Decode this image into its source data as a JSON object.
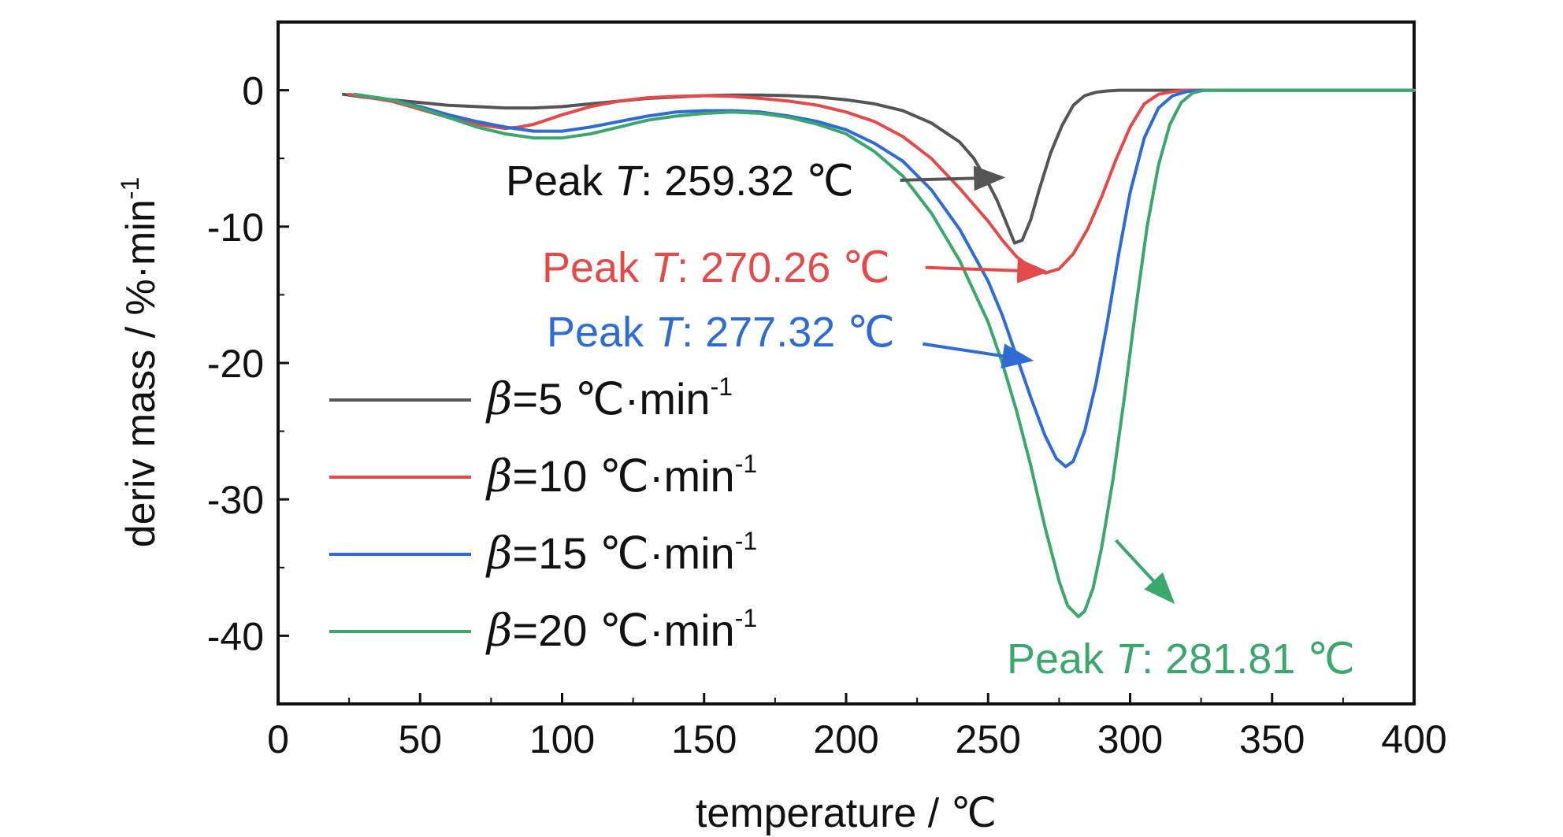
{
  "chart_data": {
    "type": "line",
    "xlabel": "temperature / ℃",
    "ylabel": "deriv mass / %·min",
    "ylabel_sup": "-1",
    "xlim": [
      0,
      400
    ],
    "ylim": [
      -45,
      5
    ],
    "x_ticks": [
      0,
      50,
      100,
      150,
      200,
      250,
      300,
      350,
      400
    ],
    "y_ticks": [
      0,
      -10,
      -20,
      -30,
      -40
    ],
    "legend_placement": "lower-left",
    "series": [
      {
        "name": "β=5 ℃·min-1",
        "legend_symbol": "β",
        "legend_value": "=5  ℃·min",
        "legend_sup": "-1",
        "color": "#555555",
        "x": [
          23,
          30,
          40,
          50,
          60,
          70,
          80,
          90,
          100,
          110,
          120,
          130,
          140,
          150,
          160,
          170,
          180,
          190,
          200,
          210,
          220,
          230,
          240,
          245,
          250,
          253,
          256,
          259.32,
          262,
          265,
          268,
          272,
          276,
          280,
          284,
          288,
          292,
          296,
          300,
          320,
          340,
          360,
          380,
          400
        ],
        "y": [
          -0.3,
          -0.5,
          -0.7,
          -0.9,
          -1.1,
          -1.2,
          -1.3,
          -1.3,
          -1.2,
          -1.0,
          -0.8,
          -0.6,
          -0.5,
          -0.4,
          -0.35,
          -0.35,
          -0.4,
          -0.5,
          -0.7,
          -1.0,
          -1.5,
          -2.4,
          -3.8,
          -5.0,
          -6.8,
          -8.0,
          -9.5,
          -11.2,
          -11.0,
          -9.5,
          -7.3,
          -4.6,
          -2.6,
          -1.1,
          -0.4,
          -0.15,
          -0.05,
          0,
          0,
          0,
          0,
          0,
          0,
          0
        ]
      },
      {
        "name": "β=10 ℃·min-1",
        "legend_symbol": "β",
        "legend_value": "=10  ℃·min",
        "legend_sup": "-1",
        "color": "#e34a4a",
        "x": [
          25,
          40,
          50,
          60,
          70,
          80,
          85,
          90,
          100,
          110,
          120,
          130,
          140,
          150,
          160,
          170,
          180,
          190,
          200,
          210,
          220,
          230,
          240,
          250,
          255,
          260,
          265,
          270.26,
          275,
          280,
          285,
          290,
          295,
          300,
          305,
          310,
          315,
          320,
          340,
          360,
          380,
          400
        ],
        "y": [
          -0.3,
          -0.8,
          -1.4,
          -2.0,
          -2.5,
          -2.8,
          -2.7,
          -2.5,
          -1.8,
          -1.2,
          -0.8,
          -0.55,
          -0.45,
          -0.4,
          -0.45,
          -0.6,
          -0.8,
          -1.1,
          -1.6,
          -2.3,
          -3.4,
          -5.0,
          -7.2,
          -9.6,
          -11.0,
          -12.2,
          -13.0,
          -13.4,
          -13.1,
          -12.0,
          -10.2,
          -7.8,
          -5.1,
          -2.7,
          -1.0,
          -0.3,
          -0.1,
          0,
          0,
          0,
          0,
          0
        ]
      },
      {
        "name": "β=15 ℃·min-1",
        "legend_symbol": "β",
        "legend_value": "=15  ℃·min",
        "legend_sup": "-1",
        "color": "#2f6bd4",
        "x": [
          27,
          40,
          50,
          60,
          70,
          80,
          90,
          100,
          110,
          120,
          130,
          140,
          150,
          160,
          170,
          180,
          190,
          200,
          210,
          220,
          230,
          240,
          250,
          255,
          260,
          265,
          270,
          274,
          277.32,
          280,
          284,
          288,
          292,
          296,
          300,
          305,
          310,
          315,
          320,
          325,
          330,
          340,
          360,
          380,
          400
        ],
        "y": [
          -0.3,
          -0.7,
          -1.2,
          -1.8,
          -2.3,
          -2.7,
          -3.0,
          -3.0,
          -2.7,
          -2.3,
          -1.9,
          -1.6,
          -1.5,
          -1.5,
          -1.6,
          -1.9,
          -2.3,
          -2.9,
          -3.9,
          -5.2,
          -7.3,
          -10.2,
          -14.0,
          -16.5,
          -19.5,
          -22.5,
          -25.3,
          -27.0,
          -27.6,
          -27.2,
          -25.0,
          -21.5,
          -17.0,
          -12.0,
          -7.5,
          -3.5,
          -1.3,
          -0.4,
          -0.1,
          0,
          0,
          0,
          0,
          0,
          0
        ]
      },
      {
        "name": "β=20 ℃·min-1",
        "legend_symbol": "β",
        "legend_value": "=20  ℃·min",
        "legend_sup": "-1",
        "color": "#3aa76d",
        "x": [
          27,
          40,
          50,
          60,
          70,
          80,
          90,
          100,
          110,
          120,
          130,
          140,
          150,
          160,
          170,
          180,
          190,
          200,
          210,
          220,
          230,
          240,
          250,
          255,
          260,
          265,
          270,
          275,
          278,
          281.81,
          284,
          287,
          290,
          294,
          298,
          302,
          306,
          310,
          314,
          318,
          322,
          326,
          340,
          360,
          380,
          400
        ],
        "y": [
          -0.3,
          -0.7,
          -1.3,
          -2.0,
          -2.7,
          -3.2,
          -3.5,
          -3.5,
          -3.2,
          -2.7,
          -2.2,
          -1.9,
          -1.7,
          -1.6,
          -1.7,
          -2.0,
          -2.5,
          -3.2,
          -4.5,
          -6.3,
          -9.0,
          -12.5,
          -17.0,
          -20.0,
          -23.5,
          -27.5,
          -32.0,
          -36.0,
          -37.8,
          -38.6,
          -38.2,
          -36.5,
          -33.5,
          -28.5,
          -22.5,
          -16.0,
          -10.0,
          -5.5,
          -2.5,
          -0.9,
          -0.2,
          0,
          0,
          0,
          0,
          0
        ]
      }
    ],
    "annotations": [
      {
        "label": "Peak ",
        "italic": "T",
        "value": ": 259.32 ℃",
        "color": "#111111",
        "arrow_color": "#555555",
        "arrow_from": [
          219,
          -6.6
        ],
        "arrow_to": [
          255,
          -6.4
        ]
      },
      {
        "label": "Peak ",
        "italic": "T",
        "value": ": 270.26 ℃",
        "color": "#e34a4a",
        "arrow_color": "#e34a4a",
        "arrow_from": [
          228,
          -13.0
        ],
        "arrow_to": [
          270.26,
          -13.3
        ]
      },
      {
        "label": "Peak ",
        "italic": "T",
        "value": ": 277.32 ℃",
        "color": "#2f6bd4",
        "arrow_color": "#2f6bd4",
        "arrow_from": [
          227,
          -18.6
        ],
        "arrow_to": [
          265,
          -19.8
        ]
      },
      {
        "label": "Peak ",
        "italic": "T",
        "value": ": 281.81 ℃",
        "color": "#3aa76d",
        "arrow_color": "#3aa76d",
        "arrow_from": [
          295,
          -33.0
        ],
        "arrow_to": [
          315,
          -37.5
        ]
      }
    ]
  }
}
